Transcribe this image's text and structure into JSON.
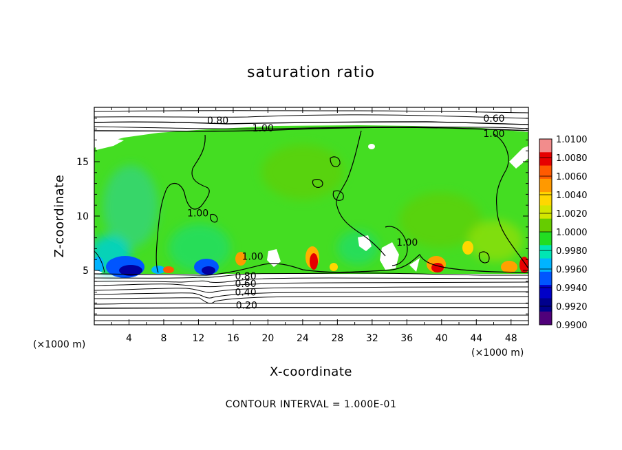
{
  "chart_data": {
    "type": "heatmap",
    "title": "saturation ratio",
    "xlabel": "X-coordinate",
    "ylabel": "Z-coordinate",
    "x_unit": "(×1000 m)",
    "z_unit": "(×1000 m)",
    "xlim": [
      0,
      50
    ],
    "ylim": [
      0,
      20
    ],
    "x_ticks": [
      4,
      8,
      12,
      16,
      20,
      24,
      28,
      32,
      36,
      40,
      44,
      48
    ],
    "y_ticks": [
      5,
      10,
      15
    ],
    "colorbar": {
      "levels": [
        "1.0100",
        "1.0080",
        "1.0060",
        "1.0040",
        "1.0020",
        "1.0000",
        "0.9980",
        "0.9960",
        "0.9940",
        "0.9920",
        "0.9900"
      ],
      "colors": [
        "#f28c8c",
        "#e60000",
        "#ff5a00",
        "#ff9900",
        "#ffd700",
        "#d2e600",
        "#66cc00",
        "#22dd22",
        "#00e6b4",
        "#00b4ff",
        "#0055ff",
        "#0000c8",
        "#00008c",
        "#50007a"
      ]
    },
    "contour_interval_text": "CONTOUR INTERVAL = 1.000E-01",
    "contour_labels": [
      {
        "text": "0.80",
        "x": 13.0,
        "z": 18.8
      },
      {
        "text": "1.00",
        "x": 18.2,
        "z": 18.1
      },
      {
        "text": "0.60",
        "x": 44.8,
        "z": 19.0
      },
      {
        "text": "1.00",
        "x": 44.8,
        "z": 17.6
      },
      {
        "text": "1.00",
        "x": 10.7,
        "z": 10.3
      },
      {
        "text": "1.00",
        "x": 34.8,
        "z": 7.6
      },
      {
        "text": "1.00",
        "x": 17.0,
        "z": 6.3
      },
      {
        "text": "0.80",
        "x": 16.2,
        "z": 4.5
      },
      {
        "text": "0.60",
        "x": 16.2,
        "z": 3.8
      },
      {
        "text": "0.40",
        "x": 16.2,
        "z": 3.0
      },
      {
        "text": "0.20",
        "x": 16.3,
        "z": 1.8
      }
    ]
  }
}
